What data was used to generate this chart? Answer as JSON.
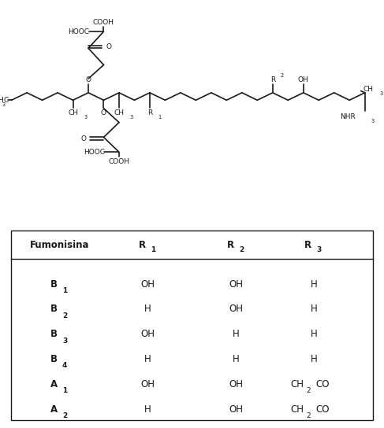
{
  "bg_color": "#ffffff",
  "black": "#1a1a1a",
  "fig_width": 4.87,
  "fig_height": 5.44,
  "dpi": 100,
  "table_header": [
    "Fumonisina",
    "R1",
    "R2",
    "R3"
  ],
  "table_rows": [
    [
      "B1",
      "OH",
      "OH",
      "H"
    ],
    [
      "B2",
      "H",
      "OH",
      "H"
    ],
    [
      "B3",
      "OH",
      "H",
      "H"
    ],
    [
      "B4",
      "H",
      "H",
      "H"
    ],
    [
      "A1",
      "OH",
      "OH",
      "CH2CO"
    ],
    [
      "A2",
      "H",
      "OH",
      "CH2CO"
    ]
  ]
}
